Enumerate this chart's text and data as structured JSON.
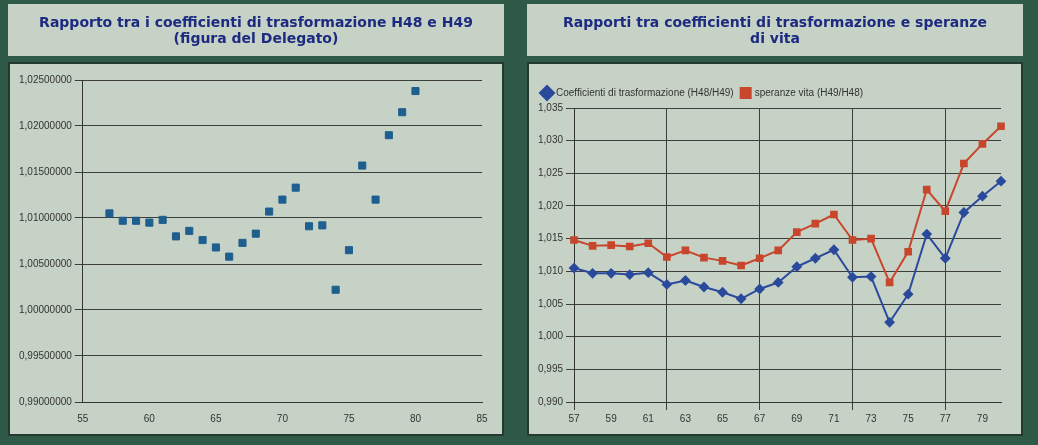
{
  "chart_data": [
    {
      "type": "scatter",
      "title": "Rapporto tra i coefficienti di trasformazione H48 e H49 (figura del Delegato)",
      "x": [
        57,
        58,
        59,
        60,
        61,
        62,
        63,
        64,
        65,
        66,
        67,
        68,
        69,
        70,
        71,
        72,
        73,
        74,
        75,
        76,
        77,
        78,
        79,
        80
      ],
      "series": [
        {
          "color": "#1f5f8f",
          "values": [
            1.0105,
            1.0097,
            1.0097,
            1.0095,
            1.0098,
            1.008,
            1.0086,
            1.0076,
            1.0068,
            1.0058,
            1.0073,
            1.0083,
            1.0107,
            1.012,
            1.0133,
            1.0091,
            1.0092,
            1.0022,
            1.0065,
            1.0157,
            1.012,
            1.019,
            1.0215,
            1.0238
          ]
        }
      ],
      "marker": "square",
      "grid": "y",
      "legend": false,
      "xlim": [
        55,
        85
      ],
      "xticks": [
        55,
        60,
        65,
        70,
        75,
        80,
        85
      ],
      "ylim": [
        0.99,
        1.025
      ],
      "yticks": [
        {
          "value": 0.99,
          "label": "0,99000000"
        },
        {
          "value": 0.995,
          "label": "0,99500000"
        },
        {
          "value": 1,
          "label": "1,00000000"
        },
        {
          "value": 1.005,
          "label": "1,00500000"
        },
        {
          "value": 1.01,
          "label": "1,01000000"
        },
        {
          "value": 1.015,
          "label": "1,01500000"
        },
        {
          "value": 1.02,
          "label": "1,02000000"
        },
        {
          "value": 1.025,
          "label": "1,02500000"
        }
      ]
    },
    {
      "type": "line",
      "title": "Rapporti tra  coefficienti di trasformazione e speranze di vita",
      "categories": [
        "57",
        null,
        "59",
        null,
        "61",
        null,
        "63",
        null,
        "65",
        null,
        "67",
        null,
        "69",
        null,
        "71",
        null,
        "73",
        null,
        "75",
        null,
        "77",
        null,
        "79",
        null
      ],
      "series": [
        {
          "name": "Coefficienti di trasformazione (H48/H49)",
          "color": "#2b4a9c",
          "marker": "diamond",
          "values": [
            1.0105,
            1.0097,
            1.0097,
            1.0095,
            1.0098,
            1.008,
            1.0086,
            1.0076,
            1.0068,
            1.0058,
            1.0073,
            1.0083,
            1.0107,
            1.012,
            1.0133,
            1.0091,
            1.0092,
            1.0022,
            1.0065,
            1.0157,
            1.012,
            1.019,
            1.0215,
            1.0238
          ]
        },
        {
          "name": "speranze vita (H49/H48)",
          "color": "#c8462c",
          "marker": "square",
          "values": [
            1.0148,
            1.0139,
            1.014,
            1.0138,
            1.0143,
            1.0122,
            1.0132,
            1.0121,
            1.0116,
            1.0109,
            1.012,
            1.0132,
            1.016,
            1.0173,
            1.0187,
            1.0148,
            1.015,
            1.0083,
            1.013,
            1.0225,
            1.0192,
            1.0265,
            1.0295,
            1.0322
          ]
        }
      ],
      "grid": true,
      "legend": "top left",
      "line_style": "solid",
      "ylim": [
        0.99,
        1.035
      ],
      "yticks": [
        {
          "value": 0.99,
          "label": "0,990"
        },
        {
          "value": 0.995,
          "label": "0,995"
        },
        {
          "value": 1,
          "label": "1,000"
        },
        {
          "value": 1.005,
          "label": "1,005"
        },
        {
          "value": 1.01,
          "label": "1,010"
        },
        {
          "value": 1.015,
          "label": "1,015"
        },
        {
          "value": 1.02,
          "label": "1,020"
        },
        {
          "value": 1.025,
          "label": "1,025"
        },
        {
          "value": 1.03,
          "label": "1,030"
        },
        {
          "value": 1.035,
          "label": "1,035"
        }
      ]
    }
  ]
}
